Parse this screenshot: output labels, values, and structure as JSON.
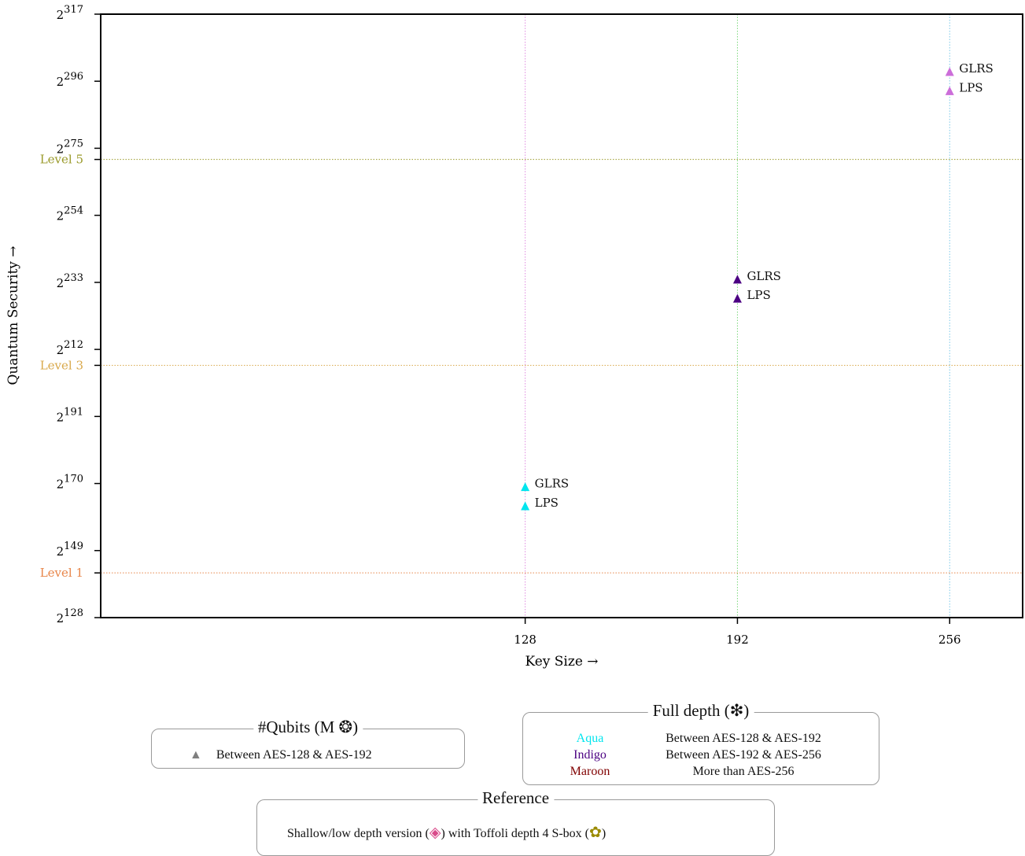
{
  "chart_data": {
    "type": "scatter",
    "xlabel": "Key Size →",
    "ylabel": "Quantum Security →",
    "x_ticks": [
      "128",
      "192",
      "256"
    ],
    "xlim": [
      0,
      278
    ],
    "y_scale": "log2",
    "ylim_exponent": [
      128,
      317
    ],
    "y_ticks": [
      {
        "base": "2",
        "exp": "128",
        "value": 128
      },
      {
        "base": "2",
        "exp": "149",
        "value": 149
      },
      {
        "base": "2",
        "exp": "170",
        "value": 170
      },
      {
        "base": "2",
        "exp": "191",
        "value": 191
      },
      {
        "base": "2",
        "exp": "212",
        "value": 212
      },
      {
        "base": "2",
        "exp": "233",
        "value": 233
      },
      {
        "base": "2",
        "exp": "254",
        "value": 254
      },
      {
        "base": "2",
        "exp": "275",
        "value": 275
      },
      {
        "base": "2",
        "exp": "296",
        "value": 296
      },
      {
        "base": "2",
        "exp": "317",
        "value": 317
      }
    ],
    "levels": [
      {
        "label": "Level 1",
        "value": 142,
        "color": "#e8864a"
      },
      {
        "label": "Level 3",
        "value": 207,
        "color": "#d9a84a"
      },
      {
        "label": "Level 5",
        "value": 271.5,
        "color": "#9a9a2a"
      }
    ],
    "vertical_guides": [
      {
        "x": 128,
        "color": "#e08ae0"
      },
      {
        "x": 192,
        "color": "#7ad87a"
      },
      {
        "x": 256,
        "color": "#7ac8e8"
      }
    ],
    "points": [
      {
        "label": "GLRS",
        "x": 128,
        "y": 169,
        "color": "#00e5ee"
      },
      {
        "label": "LPS",
        "x": 128,
        "y": 163,
        "color": "#00e5ee"
      },
      {
        "label": "GLRS",
        "x": 192,
        "y": 234,
        "color": "#4b0082"
      },
      {
        "label": "LPS",
        "x": 192,
        "y": 228,
        "color": "#4b0082"
      },
      {
        "label": "GLRS",
        "x": 256,
        "y": 299,
        "color": "#cc6ed9"
      },
      {
        "label": "LPS",
        "x": 256,
        "y": 293,
        "color": "#cc6ed9"
      }
    ]
  },
  "legends": {
    "qubits": {
      "title": "#Qubits (M ❂)",
      "marker_color": "#7f7f7f",
      "entry": "Between AES-128 & AES-192"
    },
    "depth": {
      "title": "Full depth (❇)",
      "symbol_color": "#29a8e0",
      "entries": [
        {
          "color_name": "Aqua",
          "color": "#00e5ee",
          "text": "Between AES-128 & AES-192"
        },
        {
          "color_name": "Indigo",
          "color": "#4b0082",
          "text": "Between AES-192 & AES-256"
        },
        {
          "color_name": "Maroon",
          "color": "#800000",
          "text": "More than AES-256"
        }
      ]
    },
    "reference": {
      "title": "Reference",
      "text_a": "Shallow/low depth version (",
      "sym_a": "◈",
      "sym_a_color": "#d94a8a",
      "text_b": ") with Toffoli depth 4 S-box (",
      "sym_b": "✿",
      "sym_b_color": "#9a8a00",
      "text_c": ")"
    }
  }
}
